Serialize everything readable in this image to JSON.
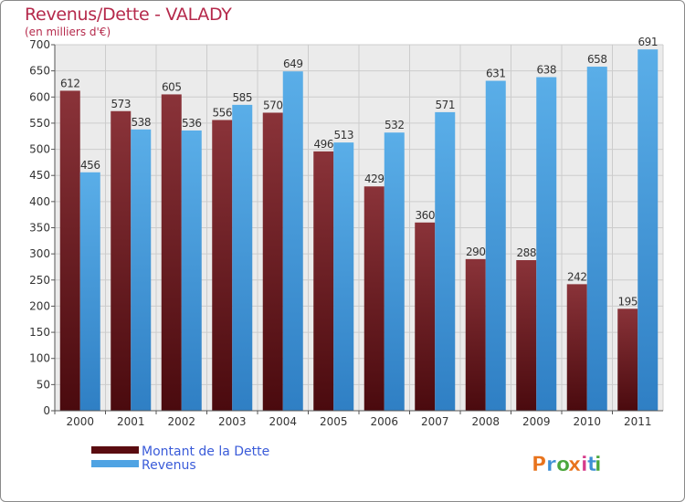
{
  "header": {
    "title": "Revenus/Dette - VALADY",
    "subtitle": "(en milliers d'€)"
  },
  "branding": {
    "logo_text": "Proxiti"
  },
  "colors": {
    "debt": "#7a1f24",
    "revenue": "#4fa3e3",
    "title": "#b5294b",
    "grid": "#cccccc",
    "plot_bg": "#ebebeb"
  },
  "chart_data": {
    "type": "bar",
    "title": "Revenus/Dette - VALADY",
    "subtitle": "(en milliers d'€)",
    "categories": [
      "2000",
      "2001",
      "2002",
      "2003",
      "2004",
      "2005",
      "2006",
      "2007",
      "2008",
      "2009",
      "2010",
      "2011"
    ],
    "series": [
      {
        "name": "Montant de la Dette",
        "values": [
          612,
          573,
          605,
          556,
          570,
          496,
          429,
          360,
          290,
          288,
          242,
          195
        ]
      },
      {
        "name": "Revenus",
        "values": [
          456,
          538,
          536,
          585,
          649,
          513,
          532,
          571,
          631,
          638,
          658,
          691
        ]
      }
    ],
    "yticks": [
      0,
      50,
      100,
      150,
      200,
      250,
      300,
      350,
      400,
      450,
      500,
      550,
      600,
      650,
      700
    ],
    "ylim": [
      0,
      700
    ],
    "grid": true,
    "legend": "bottom-left"
  }
}
